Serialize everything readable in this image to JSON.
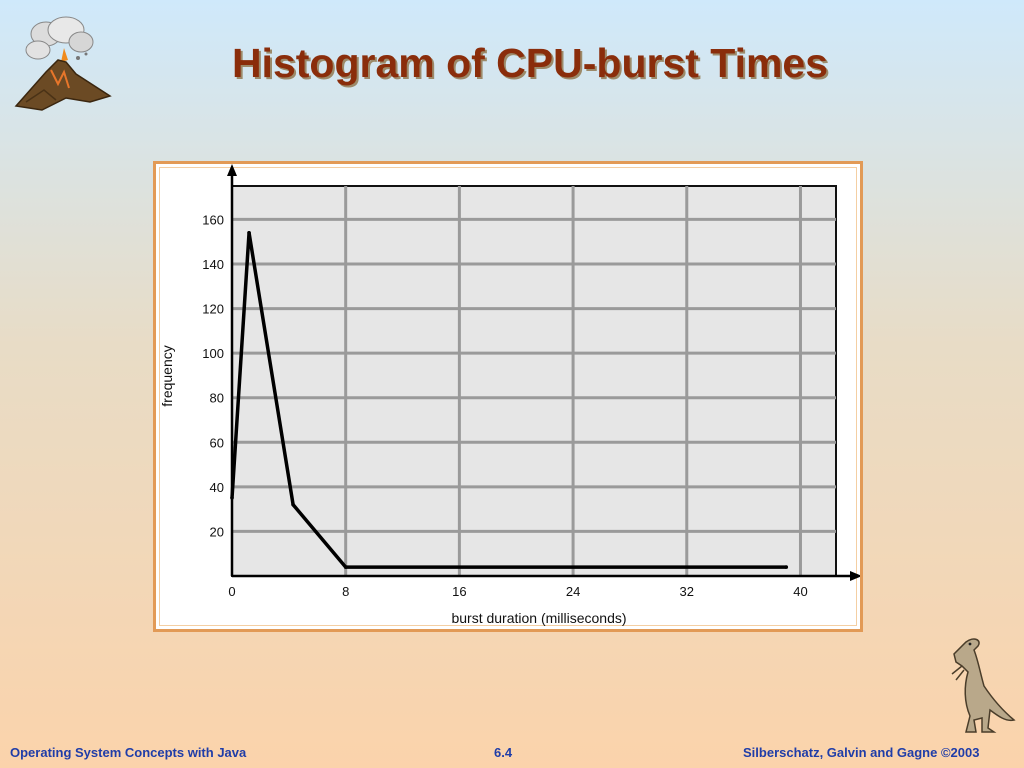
{
  "slide": {
    "title": "Histogram of CPU-burst Times",
    "footer_left": "Operating System Concepts with Java",
    "footer_center": "6.4",
    "footer_right": "Silberschatz, Galvin and Gagne ©2003"
  },
  "icons": {
    "top_left": "volcano-icon",
    "bottom_right": "dinosaur-icon"
  },
  "colors": {
    "title": "#8a2d0b",
    "footer": "#1f3da8",
    "frame_border": "#e29a56",
    "plot_background": "#e6e6e6",
    "grid": "#9a9a9a",
    "series": "#000000"
  },
  "chart_data": {
    "type": "line",
    "title": "",
    "xlabel": "burst duration (milliseconds)",
    "ylabel": "frequency",
    "xlim": [
      0,
      42.5
    ],
    "ylim": [
      0,
      175
    ],
    "x_ticks": [
      0,
      8,
      16,
      24,
      32,
      40
    ],
    "y_ticks": [
      20,
      40,
      60,
      80,
      100,
      120,
      140,
      160
    ],
    "grid": true,
    "series": [
      {
        "x": [
          0,
          1.2,
          4.3,
          8,
          39
        ],
        "y": [
          35,
          154,
          32,
          4,
          4
        ]
      }
    ]
  }
}
